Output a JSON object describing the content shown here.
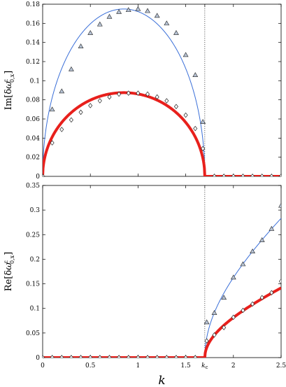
{
  "chart_data": [
    {
      "type": "line",
      "panel": "top",
      "ylabel": "Im[δω^ε_{0,x}]",
      "ylabel_parts": {
        "prefix": "Im[δ",
        "omega": "ω",
        "sup": "ε",
        "sub": "0,x",
        "suffix": "]"
      },
      "xlim": [
        0,
        2.5
      ],
      "ylim": [
        0,
        0.18
      ],
      "yticks": [
        0,
        0.02,
        0.04,
        0.06,
        0.08,
        0.1,
        0.12,
        0.14,
        0.16,
        0.18
      ],
      "ytick_labels": [
        "0",
        "0.02",
        "0.04",
        "0.06",
        "0.08",
        "0.1",
        "0.12",
        "0.14",
        "0.16",
        "0.18"
      ],
      "kc": 1.7,
      "series": [
        {
          "style": "thin-blue-line",
          "color": "#3a6fd8",
          "curve": {
            "form": "amplitude*sqrt(1-(2k/kc-1)^2) for k<kc, else 0",
            "amplitude": 0.175,
            "kc": 1.7
          }
        },
        {
          "style": "thick-red-line",
          "color": "#e8201c",
          "curve": {
            "form": "amplitude*sqrt(1-(2k/kc-1)^2) for k<kc, else 0",
            "amplitude": 0.0875,
            "kc": 1.7
          }
        },
        {
          "style": "triangle-markers",
          "x": [
            0,
            0.1,
            0.2,
            0.3,
            0.4,
            0.5,
            0.6,
            0.7,
            0.8,
            0.9,
            1.0,
            1.1,
            1.2,
            1.3,
            1.4,
            1.5,
            1.6,
            1.68,
            1.8,
            1.9,
            2.0,
            2.1,
            2.2,
            2.3,
            2.4,
            2.5
          ],
          "y": [
            0,
            0.07,
            0.089,
            0.112,
            0.136,
            0.15,
            0.159,
            0.167,
            0.172,
            0.174,
            0.175,
            0.173,
            0.168,
            0.16,
            0.15,
            0.127,
            0.106,
            0.057,
            0,
            0,
            0,
            0,
            0,
            0,
            0,
            0
          ]
        },
        {
          "style": "diamond-markers",
          "x": [
            0,
            0.1,
            0.2,
            0.3,
            0.4,
            0.5,
            0.6,
            0.7,
            0.8,
            0.9,
            1.0,
            1.1,
            1.2,
            1.3,
            1.4,
            1.5,
            1.6,
            1.68,
            1.8,
            1.9,
            2.0,
            2.1,
            2.2,
            2.3,
            2.4,
            2.5
          ],
          "y": [
            0,
            0.035,
            0.049,
            0.059,
            0.067,
            0.074,
            0.079,
            0.083,
            0.086,
            0.087,
            0.087,
            0.086,
            0.083,
            0.079,
            0.073,
            0.064,
            0.05,
            0.029,
            0,
            0,
            0,
            0,
            0,
            0,
            0,
            0
          ]
        }
      ]
    },
    {
      "type": "line",
      "panel": "bottom",
      "ylabel": "Re[δω^ε_{0,x}]",
      "ylabel_parts": {
        "prefix": "Re[δ",
        "omega": "ω",
        "sup": "ε",
        "sub": "0,x",
        "suffix": "]"
      },
      "xlabel": "k",
      "xlim": [
        0,
        2.5
      ],
      "ylim": [
        0,
        0.35
      ],
      "xticks": [
        0,
        0.5,
        1,
        1.5,
        1.7,
        2,
        2.5
      ],
      "xtick_labels": [
        "0",
        "0.5",
        "1",
        "1.5",
        "k_c",
        "2",
        "2.5"
      ],
      "yticks": [
        0,
        0.05,
        0.1,
        0.15,
        0.2,
        0.25,
        0.3,
        0.35
      ],
      "ytick_labels": [
        "0",
        "0.05",
        "0.1",
        "0.15",
        "0.2",
        "0.25",
        "0.3",
        "0.35"
      ],
      "kc": 1.7,
      "series": [
        {
          "style": "thin-blue-line",
          "color": "#3a6fd8",
          "curve": {
            "form": "a*sqrt(k^2-kc^2) for k>kc, else 0",
            "a": 0.1545,
            "kc": 1.7
          }
        },
        {
          "style": "thick-red-line",
          "color": "#e8201c",
          "curve": {
            "form": "a*sqrt(k^2-kc^2) for k>kc, else 0",
            "a": 0.0773,
            "kc": 1.7
          }
        },
        {
          "style": "triangle-markers",
          "x": [
            0,
            0.1,
            0.2,
            0.3,
            0.4,
            0.5,
            0.6,
            0.7,
            0.8,
            0.9,
            1.0,
            1.1,
            1.2,
            1.3,
            1.4,
            1.5,
            1.6,
            1.72,
            1.8,
            1.9,
            2.0,
            2.1,
            2.2,
            2.3,
            2.4,
            2.5
          ],
          "y": [
            0,
            0,
            0,
            0,
            0,
            0,
            0,
            0,
            0,
            0,
            0,
            0,
            0,
            0,
            0,
            0,
            0,
            0.072,
            0.091,
            0.122,
            0.163,
            0.19,
            0.216,
            0.239,
            0.262,
            0.309
          ]
        },
        {
          "style": "diamond-markers",
          "x": [
            0,
            0.1,
            0.2,
            0.3,
            0.4,
            0.5,
            0.6,
            0.7,
            0.8,
            0.9,
            1.0,
            1.1,
            1.2,
            1.3,
            1.4,
            1.5,
            1.6,
            1.72,
            1.8,
            1.9,
            2.0,
            2.1,
            2.2,
            2.3,
            2.4,
            2.5
          ],
          "y": [
            0,
            0,
            0,
            0,
            0,
            0,
            0,
            0,
            0,
            0,
            0,
            0,
            0,
            0,
            0,
            0,
            0,
            0.034,
            0.046,
            0.061,
            0.082,
            0.096,
            0.109,
            0.122,
            0.132,
            0.155
          ]
        }
      ]
    }
  ]
}
